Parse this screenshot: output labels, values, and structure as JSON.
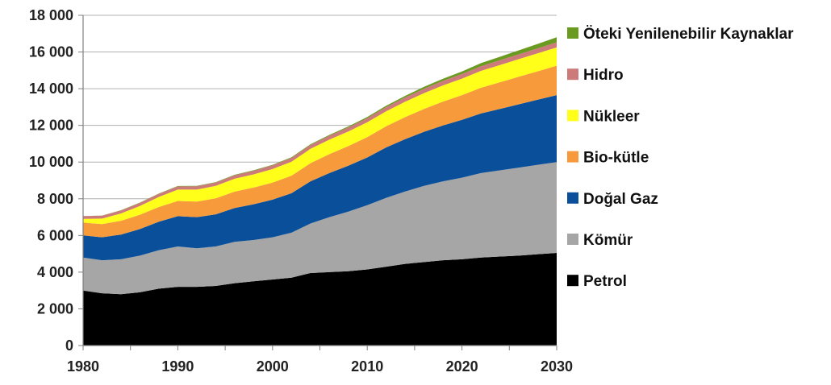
{
  "chart_data": {
    "type": "area",
    "stacked": true,
    "title": "",
    "xlabel": "",
    "ylabel": "",
    "xlim": [
      1980,
      2030
    ],
    "ylim": [
      0,
      18000
    ],
    "grid": "horizontal",
    "legend_position": "right",
    "x": [
      1980,
      1982,
      1984,
      1986,
      1988,
      1990,
      1992,
      1994,
      1996,
      1998,
      2000,
      2002,
      2004,
      2006,
      2008,
      2010,
      2012,
      2014,
      2016,
      2018,
      2020,
      2022,
      2024,
      2026,
      2028,
      2030
    ],
    "x_ticks": [
      "1980",
      "1990",
      "2000",
      "2010",
      "2020",
      "2030"
    ],
    "y_ticks": [
      "0",
      "2 000",
      "4 000",
      "6 000",
      "8 000",
      "10 000",
      "12 000",
      "14 000",
      "16 000",
      "18 000"
    ],
    "series": [
      {
        "name": "Petrol",
        "color": "#000000",
        "values": [
          3000,
          2850,
          2800,
          2900,
          3100,
          3200,
          3200,
          3250,
          3400,
          3500,
          3600,
          3700,
          3950,
          4000,
          4050,
          4150,
          4300,
          4450,
          4550,
          4650,
          4700,
          4800,
          4850,
          4900,
          4980,
          5050
        ]
      },
      {
        "name": "Kömür",
        "color": "#a6a6a6",
        "values": [
          1800,
          1800,
          1900,
          2000,
          2100,
          2200,
          2100,
          2150,
          2250,
          2250,
          2300,
          2450,
          2700,
          3000,
          3250,
          3500,
          3750,
          3950,
          4150,
          4300,
          4450,
          4600,
          4700,
          4800,
          4870,
          4950
        ]
      },
      {
        "name": "Doğal Gaz",
        "color": "#0a4f9a",
        "values": [
          1200,
          1250,
          1350,
          1450,
          1550,
          1650,
          1700,
          1750,
          1850,
          1950,
          2050,
          2150,
          2300,
          2400,
          2500,
          2600,
          2750,
          2850,
          2950,
          3050,
          3150,
          3250,
          3350,
          3450,
          3550,
          3650
        ]
      },
      {
        "name": "Bio-kütle",
        "color": "#f79a3c",
        "values": [
          700,
          720,
          750,
          780,
          800,
          830,
          850,
          870,
          890,
          910,
          930,
          960,
          990,
          1030,
          1070,
          1110,
          1150,
          1200,
          1250,
          1300,
          1350,
          1400,
          1450,
          1500,
          1550,
          1600
        ]
      },
      {
        "name": "Nükleer",
        "color": "#ffff1a",
        "values": [
          200,
          300,
          400,
          480,
          550,
          620,
          650,
          680,
          700,
          720,
          740,
          760,
          780,
          790,
          800,
          810,
          820,
          840,
          860,
          880,
          900,
          920,
          940,
          960,
          980,
          1000
        ]
      },
      {
        "name": "Hidro",
        "color": "#cc7a7a",
        "values": [
          150,
          155,
          160,
          165,
          170,
          175,
          180,
          185,
          190,
          195,
          200,
          205,
          210,
          215,
          220,
          225,
          230,
          235,
          240,
          245,
          250,
          255,
          260,
          265,
          270,
          280
        ]
      },
      {
        "name": "Öteki Yenilenebilir Kaynaklar",
        "color": "#6a9a1f",
        "values": [
          10,
          12,
          14,
          16,
          18,
          20,
          22,
          24,
          26,
          28,
          30,
          35,
          40,
          45,
          50,
          60,
          70,
          85,
          100,
          120,
          140,
          165,
          190,
          215,
          240,
          270
        ]
      }
    ],
    "legend_order": [
      "Öteki Yenilenebilir Kaynaklar",
      "Hidro",
      "Nükleer",
      "Bio-kütle",
      "Doğal Gaz",
      "Kömür",
      "Petrol"
    ]
  }
}
